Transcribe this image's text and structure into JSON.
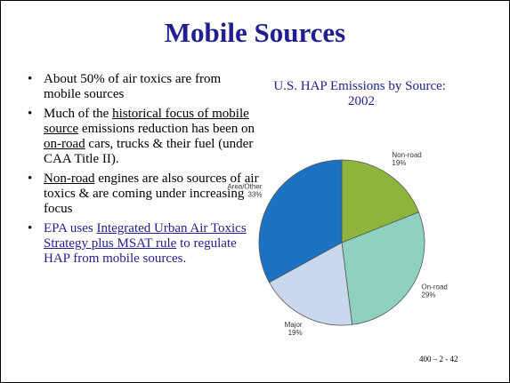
{
  "title": "Mobile Sources",
  "bullets": [
    {
      "color": "#000000",
      "segments": [
        "About 50% of air toxics are from mobile sources"
      ]
    },
    {
      "color": "#000000",
      "segments": [
        "Much of the ",
        {
          "text": "historical focus of mobile source",
          "underline": true
        },
        " emissions reduction has been on ",
        {
          "text": "on-road",
          "underline": true
        },
        " cars, trucks & their fuel (under CAA Title II)."
      ]
    },
    {
      "color": "#000000",
      "segments": [
        {
          "text": "Non-road",
          "underline": true
        },
        " engines are also sources of air toxics & are coming under increasing focus"
      ]
    },
    {
      "color": "#1f1f8f",
      "segments": [
        "EPA uses ",
        {
          "text": "Integrated Urban Air Toxics Strategy plus MSAT rule",
          "underline": true
        },
        " to regulate HAP from mobile sources."
      ]
    }
  ],
  "chart_data": {
    "type": "pie",
    "title": "U.S. HAP Emissions by Source: 2002",
    "categories": [
      "Non-road",
      "On-road",
      "Major",
      "Area/Other"
    ],
    "values": [
      19,
      29,
      19,
      33
    ],
    "value_labels": [
      "19%",
      "29%",
      "19%",
      "33%"
    ],
    "colors": [
      "#8db43c",
      "#8fd1c1",
      "#c9d8ec",
      "#1b72c0"
    ]
  },
  "footer": "400 – 2 - 42"
}
